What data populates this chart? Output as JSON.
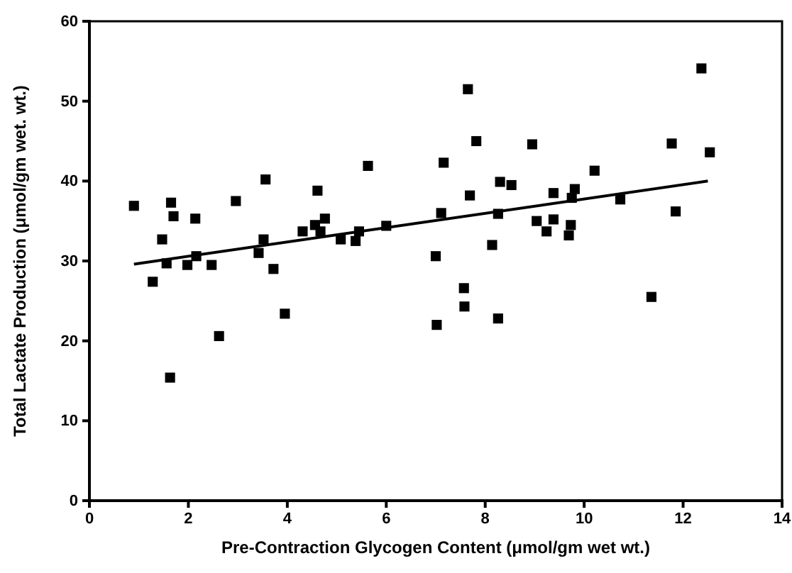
{
  "chart_data": {
    "type": "scatter",
    "xlabel": "Pre-Contraction Glycogen Content (μmol/gm wet wt.)",
    "ylabel": "Total Lactate Production (μmol/gm wet. wt.)",
    "xlim": [
      0,
      14
    ],
    "xticks": [
      0,
      2,
      4,
      6,
      8,
      10,
      12,
      14
    ],
    "ylim": [
      0,
      60
    ],
    "yticks": [
      0,
      10,
      20,
      30,
      40,
      50,
      60
    ],
    "grid": false,
    "marker": "square",
    "series": [
      {
        "color": "#000000",
        "x": [
          0.9,
          1.65,
          1.7,
          2.14,
          1.47,
          1.28,
          1.56,
          1.98,
          2.16,
          2.47,
          2.62,
          1.63,
          2.96,
          3.56,
          3.42,
          3.52,
          3.72,
          3.95,
          4.61,
          4.31,
          4.56,
          4.67,
          4.76,
          5.08,
          5.38,
          5.45,
          6.0,
          5.63,
          7.65,
          7.82,
          8.95,
          7.16,
          10.21,
          11.77,
          12.37,
          12.54,
          8.3,
          8.53,
          7.69,
          9.38,
          9.81,
          9.75,
          10.73,
          7.11,
          8.26,
          11.85,
          9.04,
          9.38,
          9.24,
          9.73,
          9.69,
          8.14,
          7.0,
          7.57,
          7.58,
          8.26,
          7.02,
          11.36
        ],
        "values": [
          36.9,
          37.3,
          35.6,
          35.3,
          32.7,
          27.4,
          29.7,
          29.5,
          30.6,
          29.5,
          20.6,
          15.4,
          37.5,
          40.2,
          31.0,
          32.7,
          29.0,
          23.4,
          38.8,
          33.7,
          34.5,
          33.7,
          35.3,
          32.7,
          32.5,
          33.7,
          34.4,
          41.9,
          51.5,
          45.0,
          44.6,
          42.3,
          41.3,
          44.7,
          54.1,
          43.6,
          39.9,
          39.5,
          38.2,
          38.5,
          39.0,
          37.9,
          37.7,
          36.0,
          35.9,
          36.2,
          35.0,
          35.2,
          33.7,
          34.5,
          33.2,
          32.0,
          30.6,
          26.6,
          24.3,
          22.8,
          22.0,
          25.5
        ]
      },
      {
        "type": "line",
        "color": "#000000",
        "marker": "none",
        "line_style": "solid",
        "x": [
          0.9,
          12.5
        ],
        "values": [
          29.6,
          40.0
        ]
      }
    ]
  }
}
